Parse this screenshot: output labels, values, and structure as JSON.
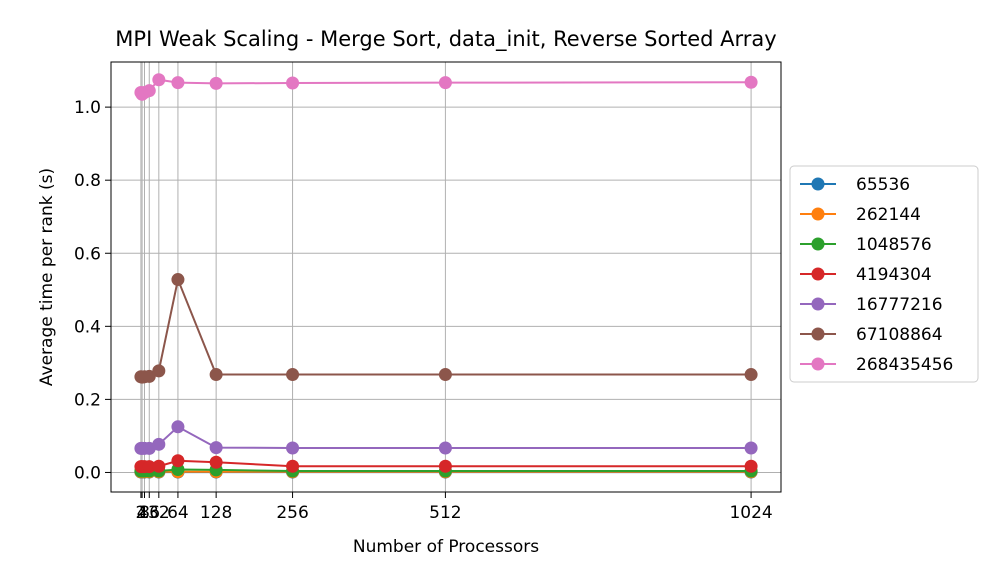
{
  "chart_data": {
    "type": "line",
    "title": "MPI Weak Scaling - Merge Sort, data_init, Reverse Sorted Array",
    "xlabel": "Number of Processors",
    "ylabel": "Average time per rank (s)",
    "x": [
      2,
      4,
      8,
      16,
      32,
      64,
      128,
      256,
      512,
      1024
    ],
    "xticks": [
      2,
      4,
      8,
      16,
      32,
      64,
      128,
      256,
      512,
      1024
    ],
    "xtick_labels": [
      "2",
      "4",
      "8",
      "16",
      "32",
      "64",
      "128",
      "256",
      "512",
      "1024"
    ],
    "xlim": [
      -48.1,
      1074.1
    ],
    "ylim": [
      -0.0535,
      1.1235
    ],
    "yticks": [
      0.0,
      0.2,
      0.4,
      0.6,
      0.8,
      1.0
    ],
    "ytick_labels": [
      "0.0",
      "0.2",
      "0.4",
      "0.6",
      "0.8",
      "1.0"
    ],
    "grid": true,
    "legend_position": "outside-right",
    "series": [
      {
        "name": "65536",
        "color": "#1f77b4",
        "values": [
          0.001,
          0.001,
          0.001,
          0.001,
          0.001,
          0.001,
          0.001,
          0.001,
          0.001,
          0.001
        ]
      },
      {
        "name": "262144",
        "color": "#ff7f0e",
        "values": [
          0.002,
          0.002,
          0.002,
          0.002,
          0.002,
          0.002,
          0.002,
          0.002,
          0.002,
          0.002
        ]
      },
      {
        "name": "1048576",
        "color": "#2ca02c",
        "values": [
          0.004,
          0.004,
          0.004,
          0.004,
          0.004,
          0.008,
          0.007,
          0.004,
          0.004,
          0.004
        ]
      },
      {
        "name": "4194304",
        "color": "#d62728",
        "values": [
          0.016,
          0.016,
          0.016,
          0.016,
          0.017,
          0.032,
          0.028,
          0.017,
          0.017,
          0.017
        ]
      },
      {
        "name": "16777216",
        "color": "#9467bd",
        "values": [
          0.066,
          0.066,
          0.066,
          0.066,
          0.077,
          0.125,
          0.068,
          0.067,
          0.067,
          0.067
        ]
      },
      {
        "name": "67108864",
        "color": "#8c564b",
        "values": [
          0.262,
          0.261,
          0.262,
          0.263,
          0.278,
          0.528,
          0.268,
          0.268,
          0.268,
          0.268
        ]
      },
      {
        "name": "268435456",
        "color": "#e377c2",
        "values": [
          1.04,
          1.035,
          1.04,
          1.045,
          1.075,
          1.067,
          1.065,
          1.066,
          1.067,
          1.068
        ]
      }
    ]
  }
}
